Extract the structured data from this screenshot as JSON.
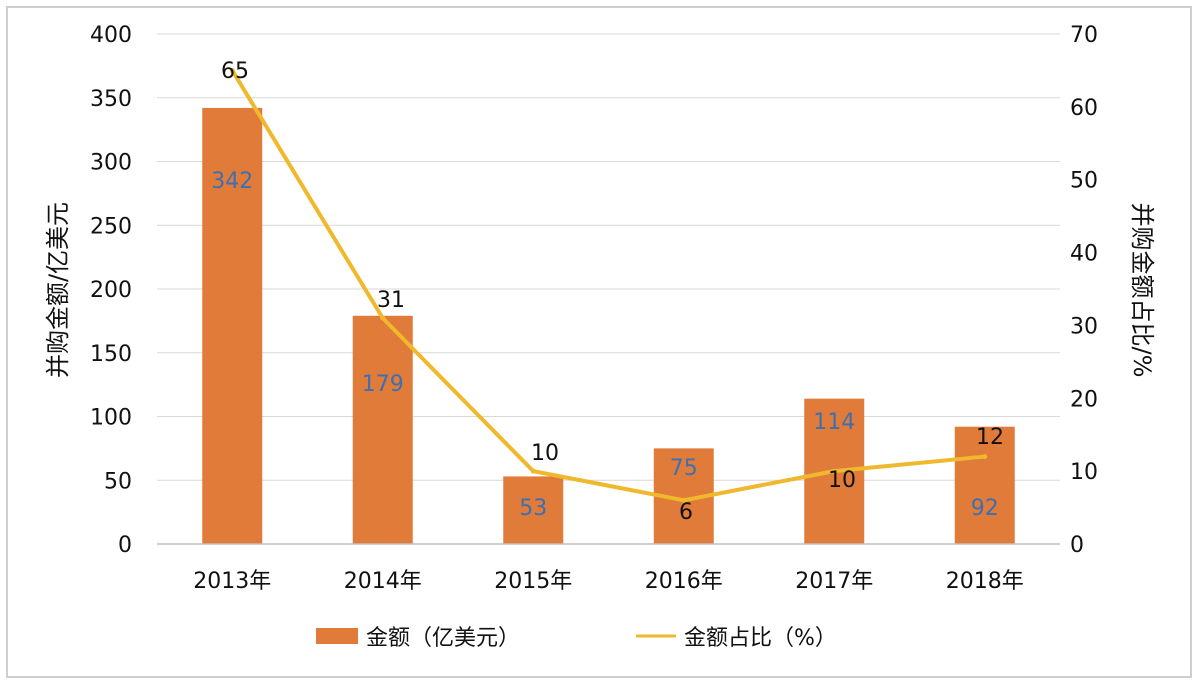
{
  "chart_data": {
    "type": "bar",
    "categories": [
      "2013年",
      "2014年",
      "2015年",
      "2016年",
      "2017年",
      "2018年"
    ],
    "series": [
      {
        "name": "金额（亿美元）",
        "type": "bar",
        "axis": "left",
        "values": [
          342,
          179,
          53,
          75,
          114,
          92
        ],
        "color": "#E07B39"
      },
      {
        "name": "金额占比（%）",
        "type": "line",
        "axis": "right",
        "values": [
          65,
          31,
          10,
          6,
          10,
          12
        ],
        "color": "#F0B82C"
      }
    ],
    "ylabel": "并购金额/亿美元",
    "y2label": "并购金额占比/%",
    "ylim": [
      0,
      400
    ],
    "y2lim": [
      0,
      70
    ],
    "yticks": [
      0,
      50,
      100,
      150,
      200,
      250,
      300,
      350,
      400
    ],
    "y2ticks": [
      0,
      10,
      20,
      30,
      40,
      50,
      60,
      70
    ],
    "grid": true,
    "legend": "bottom",
    "bar_label_color": "#3E6FB0",
    "line_label_color": "#111111",
    "grid_color": "#d9d9d9"
  }
}
